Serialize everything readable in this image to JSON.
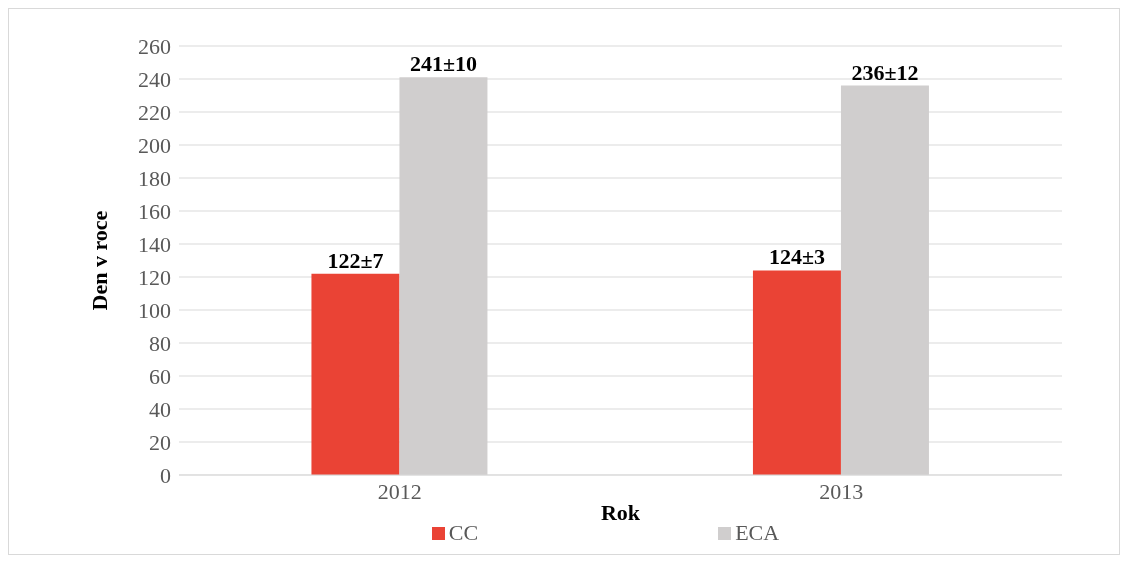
{
  "chart_data": {
    "type": "bar",
    "xlabel": "Rok",
    "ylabel": "Den v roce",
    "categories": [
      "2012",
      "2013"
    ],
    "series": [
      {
        "name": "CC",
        "color": "#ea4335",
        "values": [
          122,
          124
        ],
        "value_labels": [
          "122±7",
          "124±3"
        ]
      },
      {
        "name": "ECA",
        "color": "#d0cece",
        "values": [
          241,
          236
        ],
        "value_labels": [
          "241±10",
          "236±12"
        ]
      }
    ],
    "ylim": [
      0,
      260
    ],
    "yticks": [
      0,
      20,
      40,
      60,
      80,
      100,
      120,
      140,
      160,
      180,
      200,
      220,
      240,
      260
    ],
    "grid": "y",
    "legend": "bottom"
  }
}
